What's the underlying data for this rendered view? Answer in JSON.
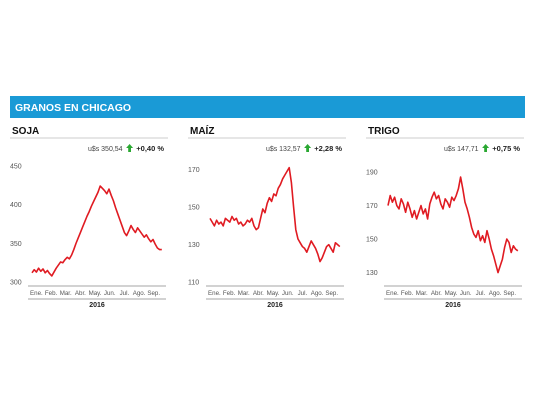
{
  "header": {
    "title": "GRANOS EN CHICAGO",
    "color": "#1a9ad6"
  },
  "style": {
    "line_color": "#e01b22",
    "up_arrow_color": "#2aa832"
  },
  "chart_data": [
    {
      "type": "line",
      "title": "SOJA",
      "price": "u$s 350,54",
      "change": "+0,40 %",
      "direction": "up",
      "year": "2016",
      "xticks": [
        "Ene.",
        "Feb.",
        "Mar.",
        "Abr.",
        "May.",
        "Jun.",
        "Jul.",
        "Ago.",
        "Sep."
      ],
      "yticks": [
        300,
        350,
        400,
        450
      ],
      "ylim": [
        295,
        455
      ],
      "series": [
        {
          "x": [
            0.0,
            0.15,
            0.3,
            0.45,
            0.6,
            0.75,
            0.9,
            1.05,
            1.2,
            1.35,
            1.5,
            1.65,
            1.8,
            1.95,
            2.1,
            2.25,
            2.4,
            2.55,
            2.7,
            2.85,
            3.0,
            3.15,
            3.3,
            3.45,
            3.6,
            3.75,
            3.9,
            4.05,
            4.2,
            4.35,
            4.5,
            4.65,
            4.8,
            4.95,
            5.1,
            5.25,
            5.4,
            5.55,
            5.7,
            5.85,
            6.0,
            6.15,
            6.3,
            6.45,
            6.6,
            6.75,
            6.9,
            7.05,
            7.2,
            7.35,
            7.5,
            7.65,
            7.8,
            7.95,
            8.1,
            8.25,
            8.4,
            8.55,
            8.7,
            8.85
          ],
          "values": [
            312,
            316,
            313,
            318,
            314,
            317,
            312,
            315,
            311,
            308,
            313,
            318,
            322,
            326,
            325,
            329,
            332,
            330,
            335,
            342,
            350,
            357,
            364,
            371,
            378,
            385,
            391,
            398,
            404,
            410,
            416,
            424,
            421,
            418,
            414,
            420,
            412,
            405,
            396,
            388,
            380,
            372,
            364,
            360,
            366,
            373,
            368,
            364,
            370,
            366,
            362,
            358,
            361,
            356,
            352,
            355,
            349,
            344,
            342,
            342
          ]
        }
      ]
    },
    {
      "type": "line",
      "title": "MAÍZ",
      "price": "u$s 132,57",
      "change": "+2,28 %",
      "direction": "up",
      "year": "2016",
      "xticks": [
        "Ene.",
        "Feb.",
        "Mar.",
        "Abr.",
        "May.",
        "Jun.",
        "Jul.",
        "Ago.",
        "Sep."
      ],
      "yticks": [
        110,
        130,
        150,
        170
      ],
      "ylim": [
        108,
        174
      ],
      "series": [
        {
          "x": [
            0.0,
            0.15,
            0.3,
            0.45,
            0.6,
            0.75,
            0.9,
            1.05,
            1.2,
            1.35,
            1.5,
            1.65,
            1.8,
            1.95,
            2.1,
            2.25,
            2.4,
            2.55,
            2.7,
            2.85,
            3.0,
            3.15,
            3.3,
            3.45,
            3.6,
            3.75,
            3.9,
            4.05,
            4.2,
            4.35,
            4.5,
            4.65,
            4.8,
            4.95,
            5.1,
            5.25,
            5.4,
            5.55,
            5.7,
            5.85,
            6.0,
            6.15,
            6.3,
            6.45,
            6.6,
            6.75,
            6.9,
            7.05,
            7.2,
            7.35,
            7.5,
            7.65,
            7.8,
            7.95,
            8.1,
            8.25,
            8.4,
            8.55,
            8.7,
            8.85
          ],
          "values": [
            144,
            142,
            140,
            143,
            141,
            142,
            140,
            144,
            143,
            142,
            145,
            143,
            144,
            141,
            142,
            140,
            141,
            143,
            142,
            144,
            140,
            138,
            139,
            144,
            149,
            147,
            152,
            155,
            153,
            157,
            156,
            160,
            162,
            165,
            167,
            169,
            171,
            163,
            150,
            138,
            133,
            131,
            129,
            128,
            126,
            129,
            132,
            130,
            128,
            125,
            121,
            123,
            126,
            129,
            130,
            128,
            126,
            131,
            130,
            129
          ]
        }
      ]
    },
    {
      "type": "line",
      "title": "TRIGO",
      "price": "u$s 147,71",
      "change": "+0,75 %",
      "direction": "up",
      "year": "2016",
      "xticks": [
        "Ene.",
        "Feb.",
        "Mar.",
        "Abr.",
        "May.",
        "Jun.",
        "Jul.",
        "Ago.",
        "Sep."
      ],
      "yticks": [
        130,
        150,
        170,
        190
      ],
      "ylim": [
        122,
        196
      ],
      "series": [
        {
          "x": [
            0.0,
            0.15,
            0.3,
            0.45,
            0.6,
            0.75,
            0.9,
            1.05,
            1.2,
            1.35,
            1.5,
            1.65,
            1.8,
            1.95,
            2.1,
            2.25,
            2.4,
            2.55,
            2.7,
            2.85,
            3.0,
            3.15,
            3.3,
            3.45,
            3.6,
            3.75,
            3.9,
            4.05,
            4.2,
            4.35,
            4.5,
            4.65,
            4.8,
            4.95,
            5.1,
            5.25,
            5.4,
            5.55,
            5.7,
            5.85,
            6.0,
            6.15,
            6.3,
            6.45,
            6.6,
            6.75,
            6.9,
            7.05,
            7.2,
            7.35,
            7.5,
            7.65,
            7.8,
            7.95,
            8.1,
            8.25,
            8.4,
            8.55,
            8.7,
            8.85
          ],
          "values": [
            170,
            176,
            172,
            175,
            170,
            168,
            174,
            171,
            166,
            172,
            168,
            163,
            167,
            162,
            166,
            170,
            165,
            168,
            162,
            171,
            175,
            178,
            174,
            176,
            171,
            168,
            174,
            172,
            169,
            175,
            173,
            176,
            180,
            187,
            180,
            172,
            168,
            163,
            157,
            153,
            151,
            155,
            149,
            152,
            148,
            155,
            150,
            144,
            140,
            135,
            130,
            134,
            138,
            145,
            150,
            148,
            142,
            146,
            144,
            143
          ]
        }
      ]
    }
  ]
}
